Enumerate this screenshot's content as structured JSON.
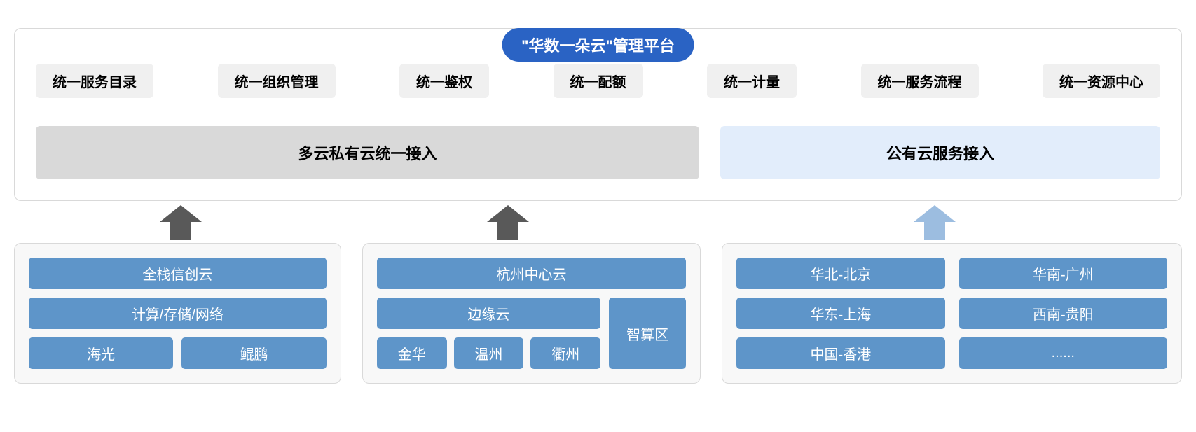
{
  "colors": {
    "title_bg": "#2a63c4",
    "title_fg": "#ffffff",
    "border_gray": "#d9d9d9",
    "feature_bg": "#f0f0f0",
    "access_private_bg": "#d9d9d9",
    "access_public_bg": "#e2edfb",
    "group_bg": "#f8f8f8",
    "box_blue": "#5e95c9",
    "arrow_dark": "#595959",
    "arrow_light": "#9cbde0"
  },
  "title": "\"华数一朵云\"管理平台",
  "features": [
    "统一服务目录",
    "统一组织管理",
    "统一鉴权",
    "统一配额",
    "统一计量",
    "统一服务流程",
    "统一资源中心"
  ],
  "access": {
    "private": "多云私有云统一接入",
    "public": "公有云服务接入"
  },
  "arrows": [
    {
      "left_pct": 12.5,
      "color": "dark"
    },
    {
      "left_pct": 40.5,
      "color": "dark"
    },
    {
      "left_pct": 77.0,
      "color": "light"
    }
  ],
  "group1": {
    "row1": "全栈信创云",
    "row2": "计算/存储/网络",
    "row3": [
      "海光",
      "鲲鹏"
    ]
  },
  "group2": {
    "row1": "杭州中心云",
    "left_top": "边缘云",
    "left_bottom": [
      "金华",
      "温州",
      "衢州"
    ],
    "right": "智算区"
  },
  "group3": {
    "cells": [
      "华北-北京",
      "华南-广州",
      "华东-上海",
      "西南-贵阳",
      "中国-香港",
      "......"
    ]
  }
}
